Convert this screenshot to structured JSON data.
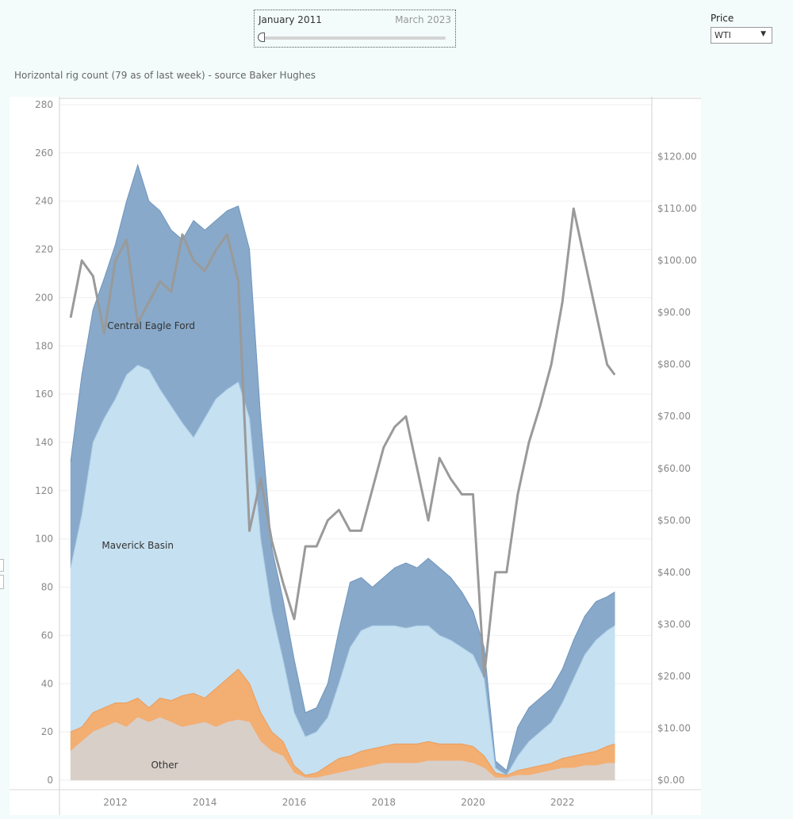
{
  "filter": {
    "start_label": "January 2011",
    "end_label": "March 2023"
  },
  "price_selector": {
    "label": "Price",
    "value": "WTI"
  },
  "chart_data": {
    "type": "area",
    "title": "Horizontal rig count (79 as of last week) - source Baker Hughes",
    "x_ticks": [
      "2012",
      "2014",
      "2016",
      "2018",
      "2020",
      "2022"
    ],
    "xlim": [
      2010.75,
      2024.0
    ],
    "y_left": {
      "ticks": [
        0,
        20,
        40,
        60,
        80,
        100,
        120,
        140,
        160,
        180,
        200,
        220,
        240,
        260,
        280
      ],
      "lim": [
        0,
        280
      ]
    },
    "y_right": {
      "ticks": [
        "$0.00",
        "$10.00",
        "$20.00",
        "$30.00",
        "$40.00",
        "$50.00",
        "$60.00",
        "$70.00",
        "$80.00",
        "$90.00",
        "$100.00",
        "$110.00",
        "$120.00"
      ],
      "lim": [
        0,
        130
      ]
    },
    "area_labels": [
      {
        "text": "Central Eagle Ford",
        "x": 2012.8,
        "y": 187
      },
      {
        "text": "Maverick Basin",
        "x": 2012.5,
        "y": 96
      },
      {
        "text": "Other",
        "x": 2013.1,
        "y": 5
      }
    ],
    "x": [
      2011.0,
      2011.25,
      2011.5,
      2011.75,
      2012.0,
      2012.25,
      2012.5,
      2012.75,
      2013.0,
      2013.25,
      2013.5,
      2013.75,
      2014.0,
      2014.25,
      2014.5,
      2014.75,
      2015.0,
      2015.25,
      2015.5,
      2015.75,
      2016.0,
      2016.25,
      2016.5,
      2016.75,
      2017.0,
      2017.25,
      2017.5,
      2017.75,
      2018.0,
      2018.25,
      2018.5,
      2018.75,
      2019.0,
      2019.25,
      2019.5,
      2019.75,
      2020.0,
      2020.25,
      2020.5,
      2020.75,
      2021.0,
      2021.25,
      2021.5,
      2021.75,
      2022.0,
      2022.25,
      2022.5,
      2022.75,
      2023.0,
      2023.17
    ],
    "series": [
      {
        "name": "Other",
        "color": "#d8cfc9",
        "values": [
          12,
          16,
          20,
          22,
          24,
          22,
          26,
          24,
          26,
          24,
          22,
          23,
          24,
          22,
          24,
          25,
          24,
          16,
          12,
          10,
          3,
          1,
          1,
          2,
          3,
          4,
          5,
          6,
          7,
          7,
          7,
          7,
          8,
          8,
          8,
          8,
          7,
          5,
          1,
          1,
          2,
          2,
          3,
          4,
          5,
          5,
          6,
          6,
          7,
          7
        ]
      },
      {
        "name": "",
        "color": "#f3ae72",
        "values": [
          20,
          22,
          28,
          30,
          32,
          32,
          34,
          30,
          34,
          33,
          35,
          36,
          34,
          38,
          42,
          46,
          40,
          28,
          20,
          16,
          6,
          2,
          3,
          6,
          9,
          10,
          12,
          13,
          14,
          15,
          15,
          15,
          16,
          15,
          15,
          15,
          14,
          10,
          3,
          2,
          4,
          5,
          6,
          7,
          9,
          10,
          11,
          12,
          14,
          15
        ]
      },
      {
        "name": "",
        "color": "#c5e0f1",
        "values": [
          88,
          110,
          140,
          150,
          158,
          168,
          172,
          170,
          162,
          155,
          148,
          142,
          150,
          158,
          162,
          165,
          150,
          100,
          70,
          50,
          28,
          18,
          20,
          26,
          40,
          55,
          62,
          64,
          64,
          64,
          63,
          64,
          64,
          60,
          58,
          55,
          52,
          42,
          5,
          2,
          10,
          16,
          20,
          24,
          32,
          42,
          52,
          58,
          62,
          64
        ]
      },
      {
        "name": "",
        "color": "#88a9c9",
        "values": [
          132,
          168,
          195,
          208,
          222,
          240,
          255,
          240,
          236,
          228,
          224,
          232,
          228,
          232,
          236,
          238,
          220,
          150,
          96,
          75,
          50,
          28,
          30,
          40,
          62,
          82,
          84,
          80,
          84,
          88,
          90,
          88,
          92,
          88,
          84,
          78,
          70,
          55,
          8,
          4,
          22,
          30,
          34,
          38,
          46,
          58,
          68,
          74,
          76,
          78
        ]
      },
      {
        "name": "WTI",
        "color": "#9a9a9a",
        "values": [
          89,
          100,
          97,
          86,
          100,
          104,
          88,
          92,
          96,
          94,
          105,
          100,
          98,
          102,
          105,
          96,
          48,
          58,
          46,
          38,
          31,
          45,
          45,
          50,
          52,
          48,
          48,
          56,
          64,
          68,
          70,
          60,
          50,
          62,
          58,
          55,
          55,
          20,
          40,
          40,
          55,
          65,
          72,
          80,
          92,
          110,
          100,
          90,
          80,
          78
        ]
      }
    ]
  }
}
